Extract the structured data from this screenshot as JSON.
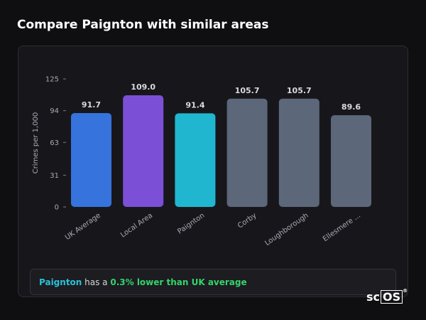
{
  "page": {
    "title": "Compare Paignton with similar areas"
  },
  "chart_data": {
    "type": "bar",
    "ylabel": "Crimes per 1,000",
    "yticks": [
      0,
      31,
      63,
      94,
      125
    ],
    "ylim": [
      0,
      125
    ],
    "grid": false,
    "categories": [
      "UK Average",
      "Local Area",
      "Paignton",
      "Corby",
      "Loughborough",
      "Ellesmere ..."
    ],
    "values": [
      91.7,
      109.0,
      91.4,
      105.7,
      105.7,
      89.6
    ],
    "value_labels": [
      "91.7",
      "109.0",
      "91.4",
      "105.7",
      "105.7",
      "89.6"
    ],
    "colors": [
      "#3673dc",
      "#7b4fd6",
      "#21b6cf",
      "#5c677a",
      "#5c677a",
      "#5c677a"
    ]
  },
  "summary": {
    "area": "Paignton",
    "text_middle": " has a ",
    "comparison": "0.3% lower than UK average"
  },
  "logo": {
    "prefix": "sc",
    "boxed": "OS",
    "mark": "®"
  }
}
